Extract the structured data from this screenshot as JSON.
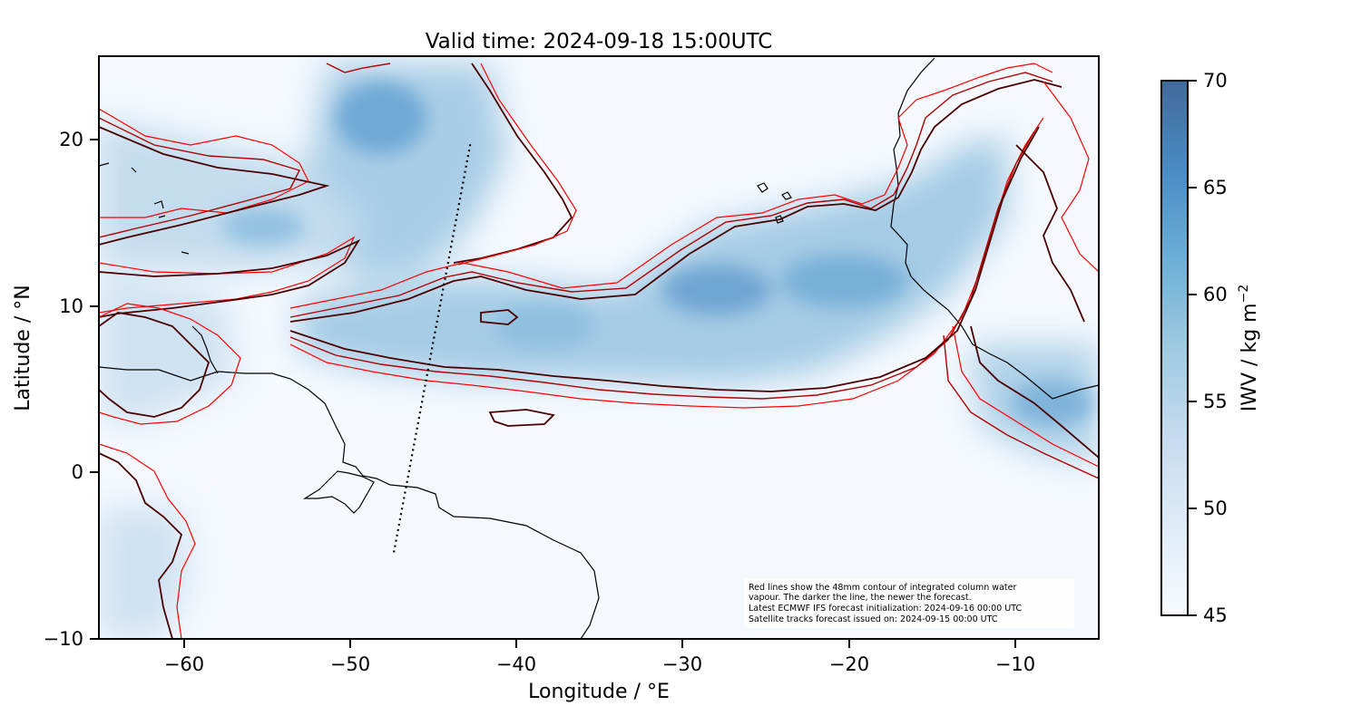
{
  "title": "Valid time: 2024-09-18 15:00UTC",
  "xaxis": {
    "label": "Longitude / °E",
    "range": [
      -65,
      -5
    ],
    "ticks": [
      -60,
      -50,
      -40,
      -30,
      -20,
      -10
    ],
    "tick_labels": [
      "−60",
      "−50",
      "−40",
      "−30",
      "−20",
      "−10"
    ]
  },
  "yaxis": {
    "label": "Latitude / °N",
    "range": [
      -10,
      25
    ],
    "ticks": [
      -10,
      0,
      10,
      20
    ],
    "tick_labels": [
      "−10",
      "0",
      "10",
      "20"
    ]
  },
  "colorbar": {
    "label_main": "IWV / kg m",
    "label_exp": "−2",
    "range": [
      45,
      70
    ],
    "ticks": [
      45,
      50,
      55,
      60,
      65,
      70
    ],
    "tick_labels": [
      "45",
      "50",
      "55",
      "60",
      "65",
      "70"
    ],
    "colors": [
      "#f7fbff",
      "#deebf7",
      "#c6dbef",
      "#9ecae1",
      "#6baed6",
      "#4a8cc4",
      "#416a9a"
    ]
  },
  "note": {
    "lines": [
      "Red lines show the 48mm contour of integrated column water",
      "vapour. The darker the line, the newer the forecast.",
      "Latest ECMWF IFS forecast initialization: 2024-09-16 00:00 UTC",
      "Satellite tracks forecast issued on: 2024-09-15 00:00 UTC"
    ]
  },
  "satellite_track": {
    "start": [
      -47.3,
      -4.8
    ],
    "end": [
      -42.7,
      19.8
    ]
  },
  "contour_colors": {
    "newest": "#4a0000",
    "middle": "#b00000",
    "oldest": "#ff0000"
  },
  "coastline_color": "#000000"
}
